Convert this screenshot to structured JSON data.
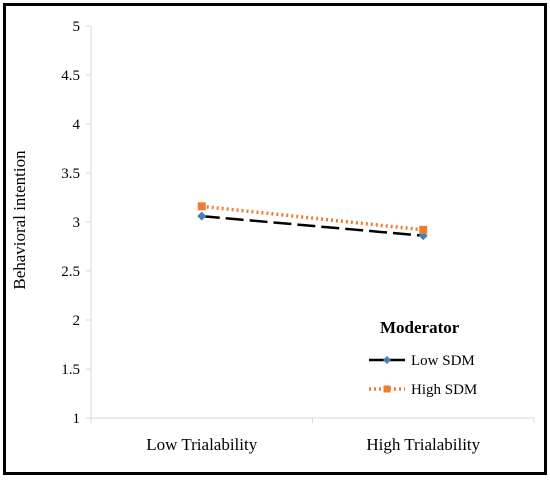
{
  "chart_data": {
    "type": "line",
    "categories": [
      "Low Trialability",
      "High Trialability"
    ],
    "ylabel": "Behavioral intention",
    "ylim": [
      1,
      5
    ],
    "yticks": [
      1,
      1.5,
      2,
      2.5,
      3,
      3.5,
      4,
      4.5,
      5
    ],
    "ytick_labels": [
      "1",
      "1.5",
      "2",
      "2.5",
      "3",
      "3.5",
      "4",
      "4.5",
      "5"
    ],
    "grid": false,
    "legend": {
      "title": "Moderator",
      "placement": "bottom-right"
    },
    "series": [
      {
        "name": "Low SDM",
        "values": [
          3.06,
          2.86
        ],
        "color": "#000000",
        "marker_color": "#4A7EBB",
        "marker": "diamond",
        "line_style": "long-dash"
      },
      {
        "name": "High SDM",
        "values": [
          3.16,
          2.92
        ],
        "color": "#ED7D31",
        "marker_color": "#ED7D31",
        "marker": "square",
        "line_style": "dotted"
      }
    ]
  }
}
